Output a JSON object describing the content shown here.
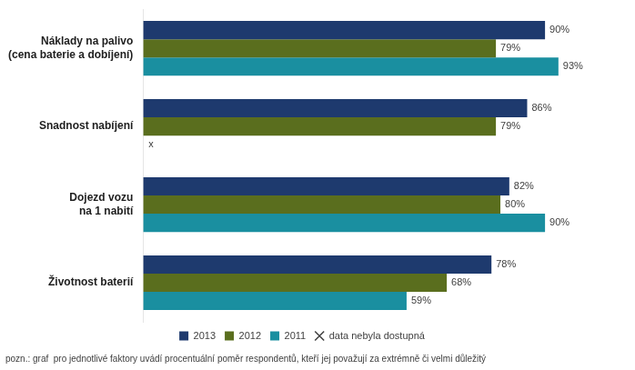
{
  "chart_data": {
    "type": "bar",
    "orientation": "horizontal",
    "categories": [
      "Náklady na palivo\n(cena baterie a dobíjení)",
      "Snadnost nabíjení",
      "Dojezd vozu\nna 1 nabití",
      "Životnost baterií"
    ],
    "series": [
      {
        "name": "2013",
        "color": "#1e3a6e",
        "values": [
          90,
          86,
          82,
          78
        ],
        "value_labels": [
          "90%",
          "86%",
          "82%",
          "78%"
        ]
      },
      {
        "name": "2012",
        "color": "#5a6e1e",
        "values": [
          79,
          79,
          80,
          68
        ],
        "value_labels": [
          "79%",
          "79%",
          "80%",
          "68%"
        ]
      },
      {
        "name": "2011",
        "color": "#1a8fa0",
        "values": [
          93,
          null,
          90,
          59
        ],
        "value_labels": [
          "93%",
          null,
          "90%",
          "59%"
        ]
      }
    ],
    "xlim": [
      0,
      102
    ],
    "tick_labels": "y",
    "grid": false,
    "legend": "bottom",
    "data_labels": true,
    "missing_marker": "x",
    "missing_label": "data nebyla dostupná",
    "footnote": "pozn.: graf  pro jednotlivé faktory uvádí procentuální poměr respondentů, kteří jej považují za extrémně či velmi důležitý"
  }
}
